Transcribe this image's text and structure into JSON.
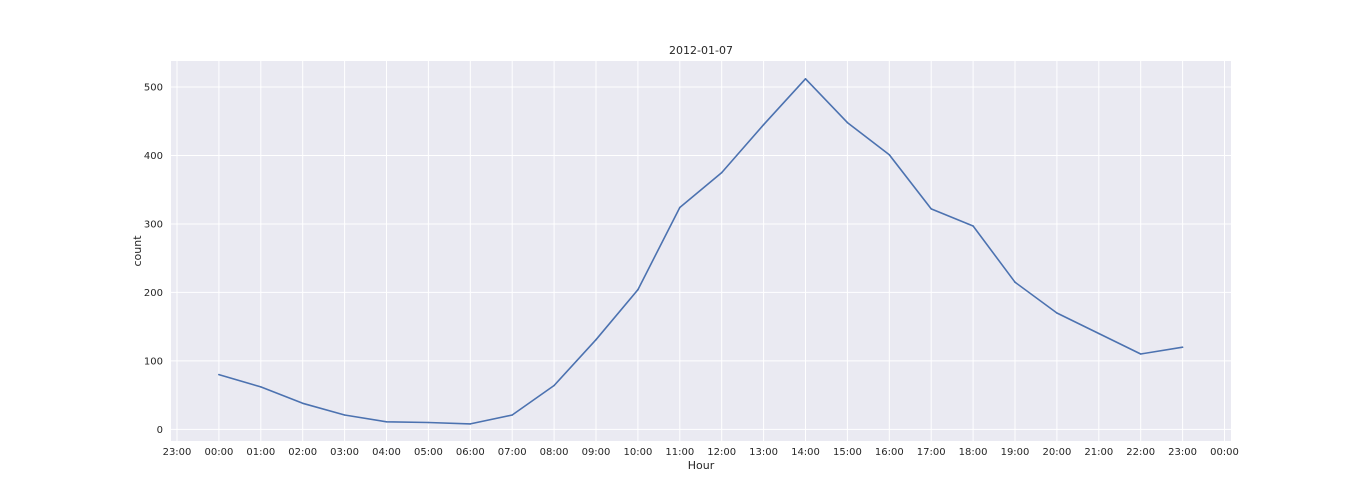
{
  "chart_data": {
    "type": "line",
    "title": "2012-01-07",
    "xlabel": "Hour",
    "ylabel": "count",
    "x_ticks": [
      "23:00",
      "00:00",
      "01:00",
      "02:00",
      "03:00",
      "04:00",
      "05:00",
      "06:00",
      "07:00",
      "08:00",
      "09:00",
      "10:00",
      "11:00",
      "12:00",
      "13:00",
      "14:00",
      "15:00",
      "16:00",
      "17:00",
      "18:00",
      "19:00",
      "20:00",
      "21:00",
      "22:00",
      "23:00",
      "00:00"
    ],
    "x": [
      "00:00",
      "01:00",
      "02:00",
      "03:00",
      "04:00",
      "05:00",
      "06:00",
      "07:00",
      "08:00",
      "09:00",
      "10:00",
      "11:00",
      "12:00",
      "13:00",
      "14:00",
      "15:00",
      "16:00",
      "17:00",
      "18:00",
      "19:00",
      "20:00",
      "21:00",
      "22:00",
      "23:00"
    ],
    "series": [
      {
        "values": [
          80,
          62,
          38,
          21,
          11,
          10,
          8,
          21,
          64,
          131,
          204,
          324,
          375,
          445,
          512,
          448,
          401,
          322,
          297,
          215,
          170,
          140,
          110,
          120
        ],
        "color": "#4c72b0"
      }
    ],
    "y_ticks": [
      0,
      100,
      200,
      300,
      400,
      500
    ],
    "ylim": [
      -17,
      538
    ],
    "grid": true,
    "background": "#eaeaf2",
    "grid_color": "#ffffff"
  }
}
